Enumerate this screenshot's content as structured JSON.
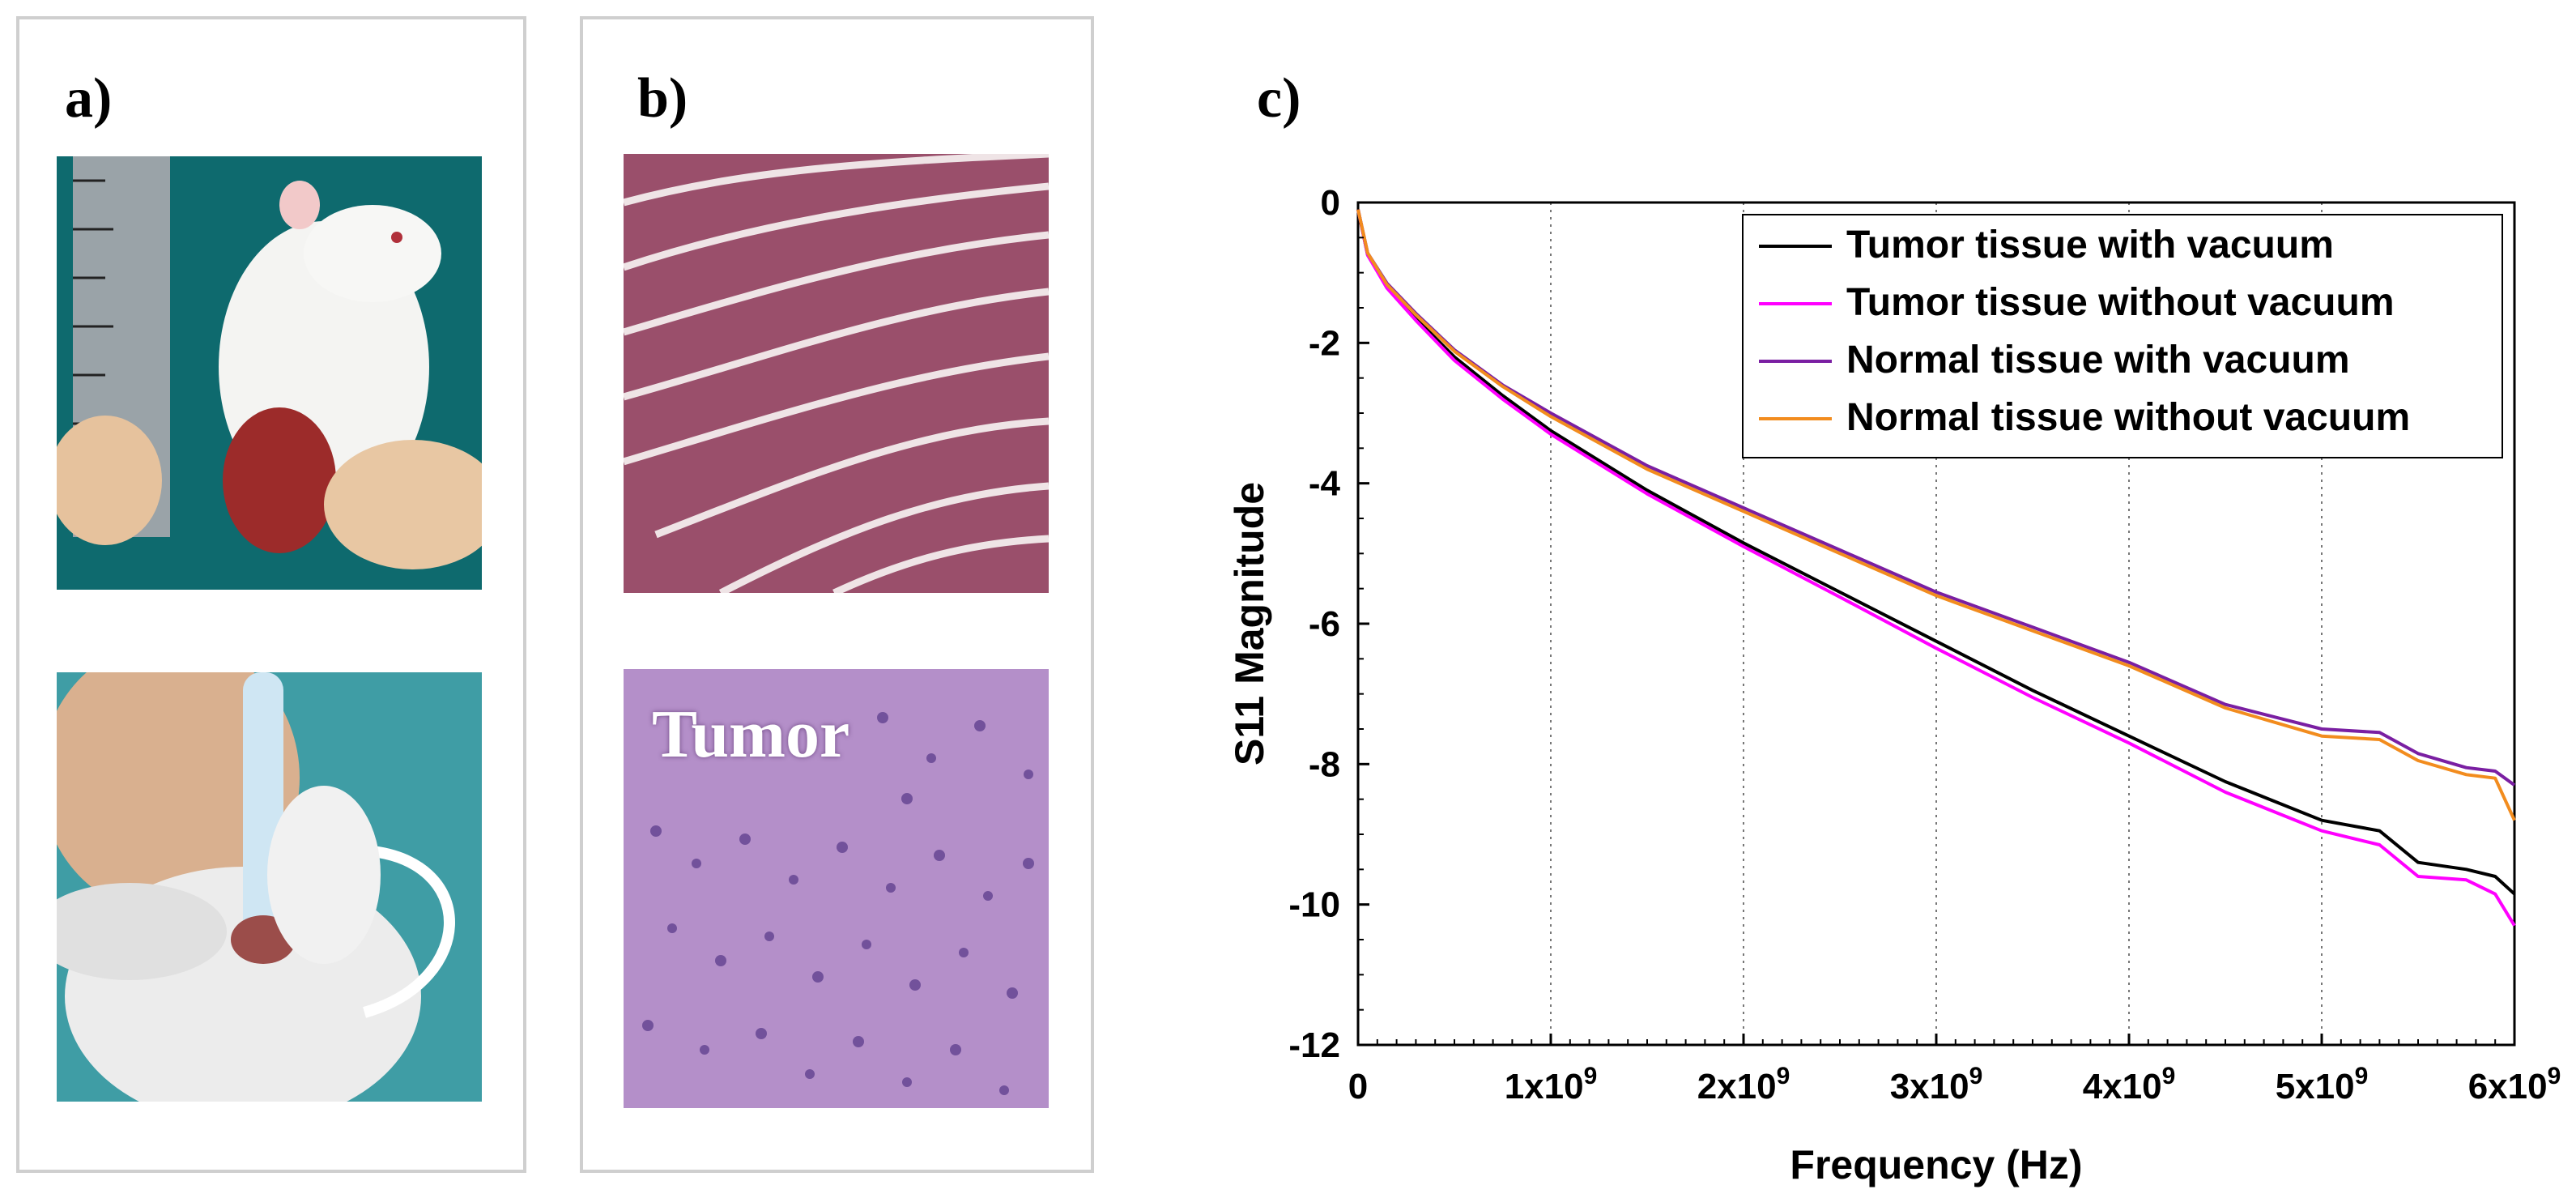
{
  "panels": {
    "a": {
      "label": "a)",
      "top_image": "mouse-with-ruler-photo",
      "bottom_image": "probe-on-tumor-photo"
    },
    "b": {
      "label": "b)",
      "top_image": "normal-muscle-histology",
      "bottom_image": "tumor-histology",
      "tumor_label": "Tumor"
    },
    "c": {
      "label": "c)"
    }
  },
  "chart_data": {
    "type": "line",
    "title": "",
    "xlabel": "Frequency (Hz)",
    "ylabel": "S11 Magnitude",
    "xlim": [
      0,
      6000000000
    ],
    "ylim": [
      -12,
      0
    ],
    "grid": "vertical-dotted",
    "legend_position": "top-right",
    "x_ticks": [
      {
        "value": 0,
        "base": "0",
        "exp": ""
      },
      {
        "value": 1000000000,
        "base": "1x10",
        "exp": "9"
      },
      {
        "value": 2000000000,
        "base": "2x10",
        "exp": "9"
      },
      {
        "value": 3000000000,
        "base": "3x10",
        "exp": "9"
      },
      {
        "value": 4000000000,
        "base": "4x10",
        "exp": "9"
      },
      {
        "value": 5000000000,
        "base": "5x10",
        "exp": "9"
      },
      {
        "value": 6000000000,
        "base": "6x10",
        "exp": "9"
      }
    ],
    "y_ticks": [
      0,
      -2,
      -4,
      -6,
      -8,
      -10,
      -12
    ],
    "x": [
      0,
      50000000,
      150000000,
      300000000,
      500000000,
      750000000,
      1000000000,
      1500000000,
      2000000000,
      2500000000,
      3000000000,
      3500000000,
      4000000000,
      4500000000,
      5000000000,
      5300000000,
      5500000000,
      5750000000,
      5900000000,
      6000000000
    ],
    "series": [
      {
        "name": "Tumor tissue with vacuum",
        "color": "#000000",
        "values": [
          -0.1,
          -0.75,
          -1.2,
          -1.65,
          -2.2,
          -2.75,
          -3.25,
          -4.1,
          -4.85,
          -5.55,
          -6.25,
          -6.95,
          -7.6,
          -8.25,
          -8.8,
          -8.95,
          -9.4,
          -9.5,
          -9.6,
          -9.85
        ]
      },
      {
        "name": "Tumor tissue without vacuum",
        "color": "#ff00ff",
        "values": [
          -0.1,
          -0.75,
          -1.22,
          -1.68,
          -2.25,
          -2.8,
          -3.3,
          -4.15,
          -4.9,
          -5.62,
          -6.35,
          -7.05,
          -7.7,
          -8.4,
          -8.95,
          -9.15,
          -9.6,
          -9.65,
          -9.85,
          -10.3
        ]
      },
      {
        "name": "Normal tissue with vacuum",
        "color": "#7a1fa2",
        "values": [
          -0.1,
          -0.72,
          -1.15,
          -1.58,
          -2.1,
          -2.6,
          -3.0,
          -3.75,
          -4.35,
          -4.95,
          -5.55,
          -6.05,
          -6.55,
          -7.15,
          -7.5,
          -7.55,
          -7.85,
          -8.05,
          -8.1,
          -8.3
        ]
      },
      {
        "name": "Normal tissue without vacuum",
        "color": "#f28c1e",
        "values": [
          -0.1,
          -0.72,
          -1.17,
          -1.6,
          -2.12,
          -2.62,
          -3.05,
          -3.8,
          -4.4,
          -5.0,
          -5.6,
          -6.1,
          -6.6,
          -7.2,
          -7.6,
          -7.65,
          -7.95,
          -8.15,
          -8.2,
          -8.8
        ]
      }
    ]
  }
}
